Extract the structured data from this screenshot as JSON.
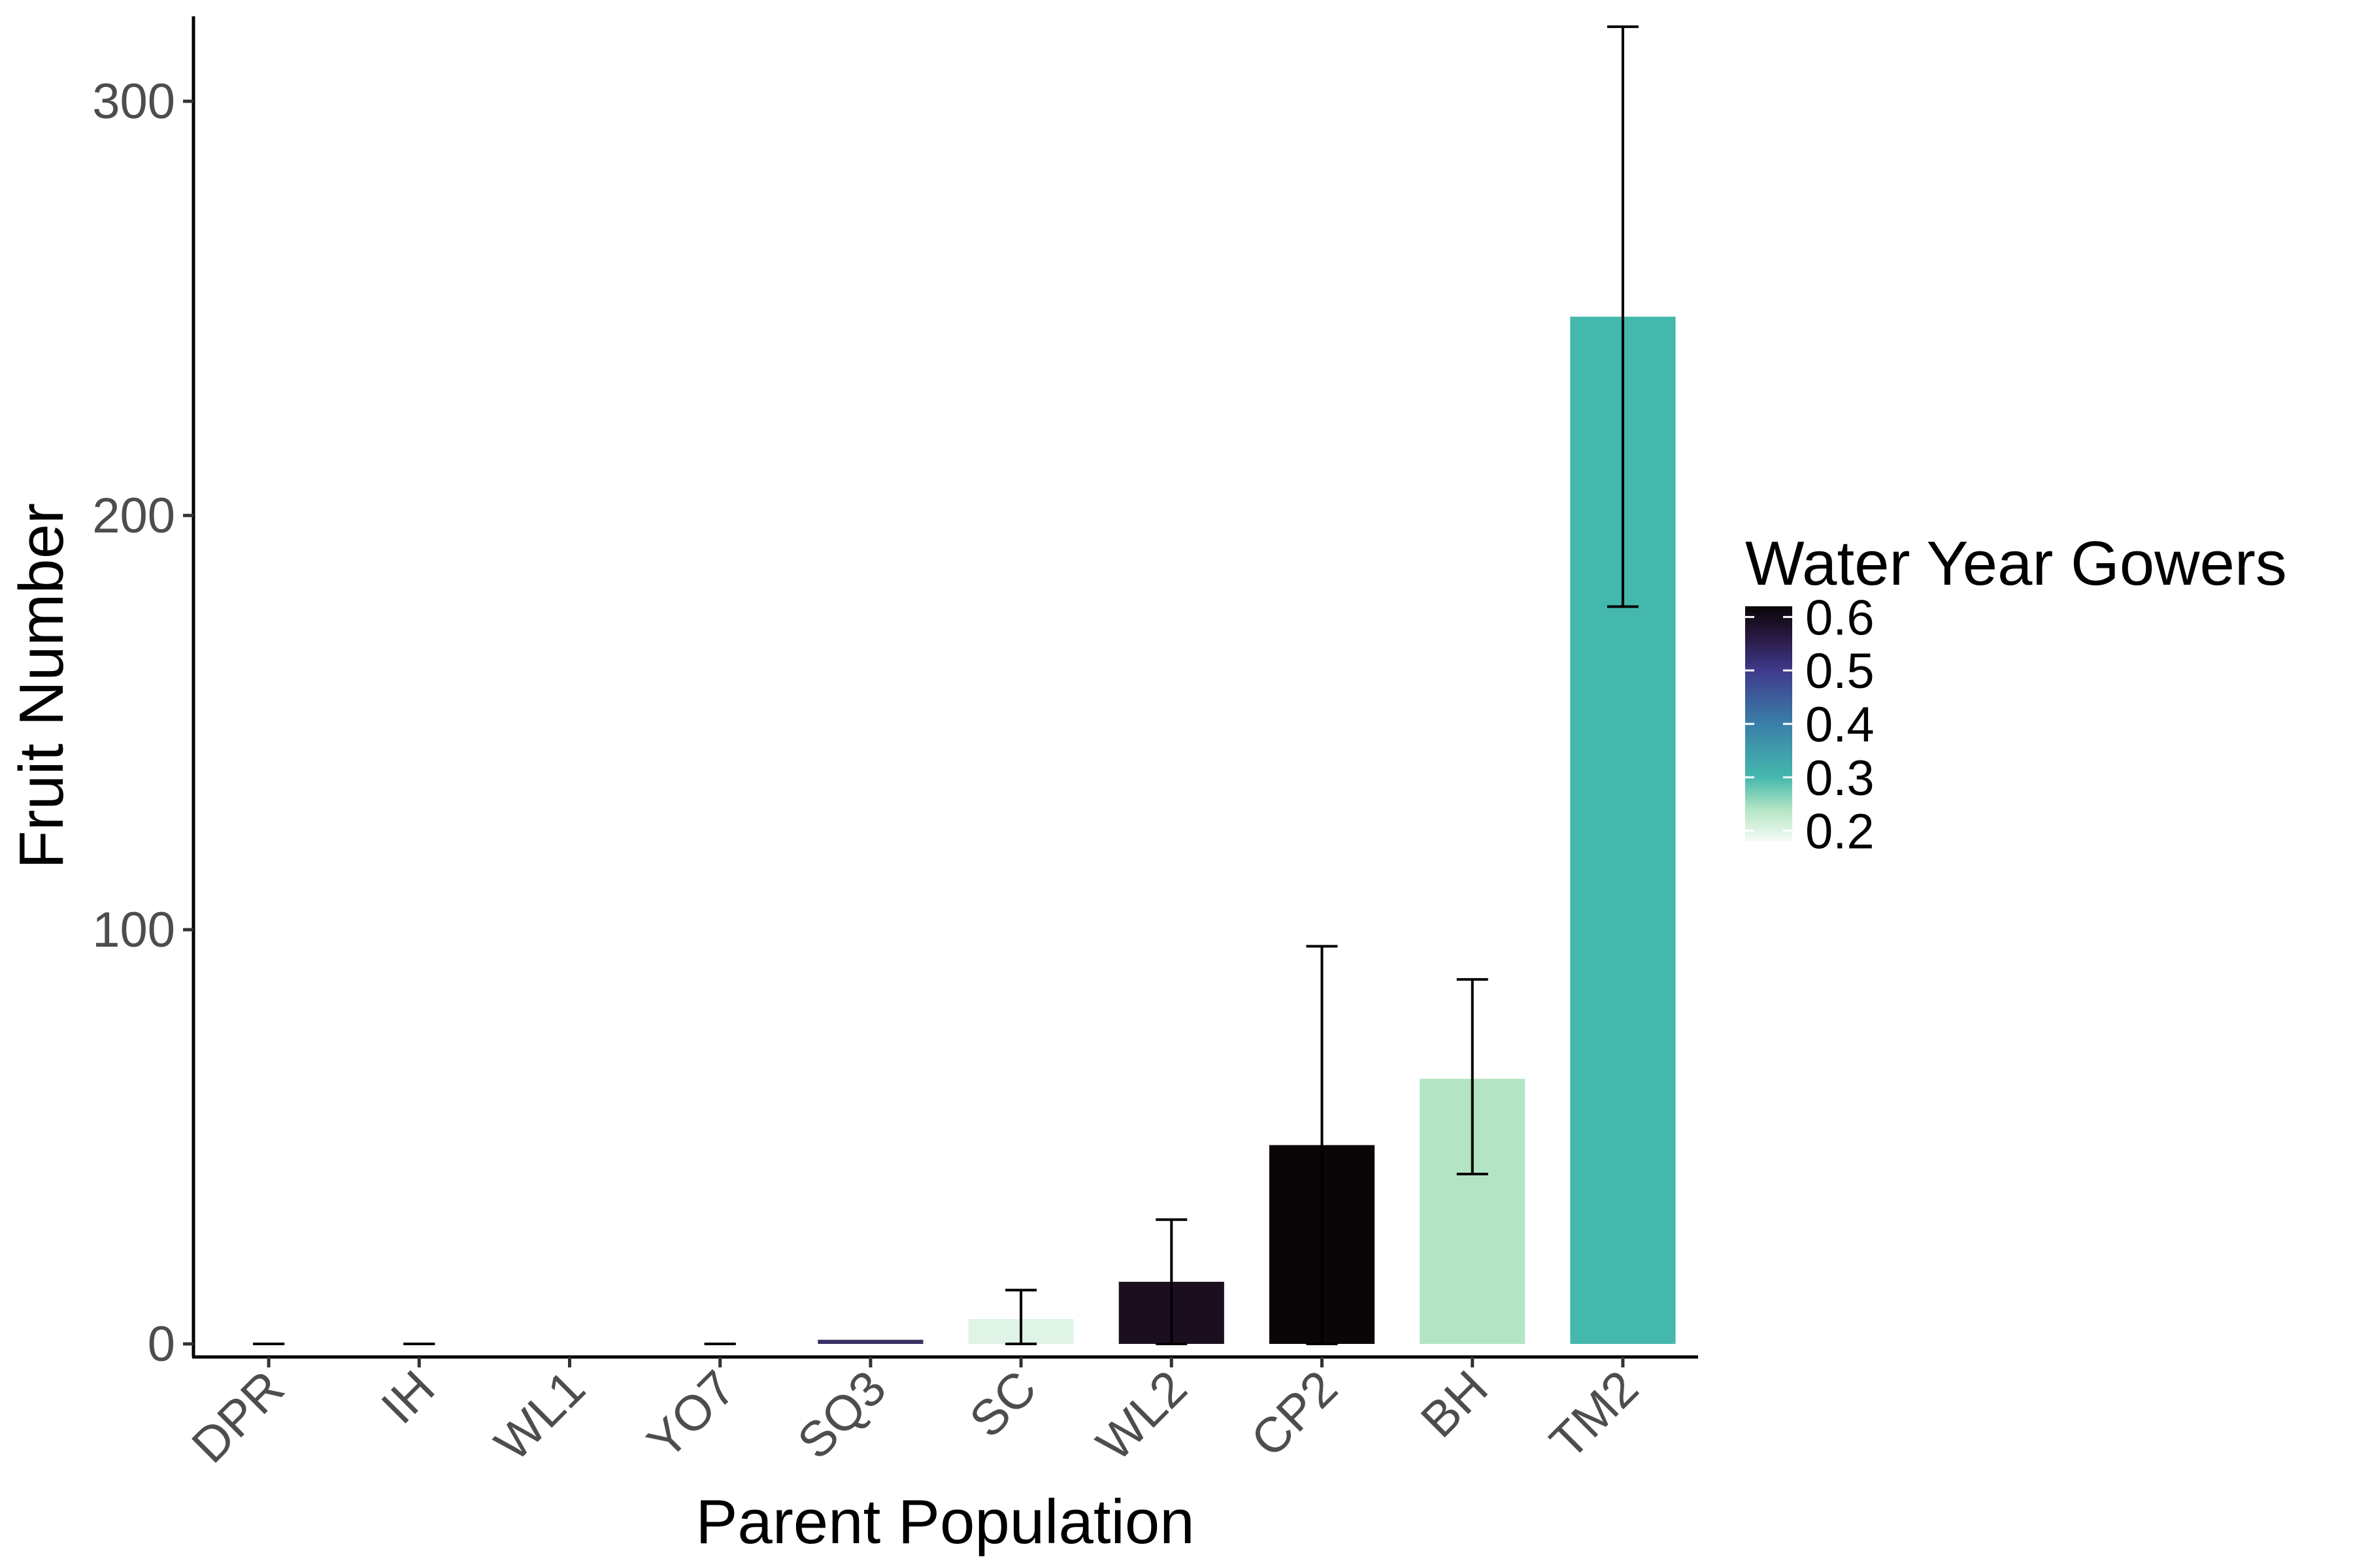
{
  "chart_data": {
    "type": "bar",
    "xlabel": "Parent Population",
    "ylabel": "Fruit Number",
    "categories": [
      "DPR",
      "IH",
      "WL1",
      "YO7",
      "SQ3",
      "SC",
      "WL2",
      "CP2",
      "BH",
      "TM2"
    ],
    "values": [
      0,
      0,
      0,
      0,
      1,
      6,
      15,
      48,
      64,
      248
    ],
    "error_low": [
      0,
      0,
      0,
      0,
      1,
      0,
      0,
      0,
      41,
      178
    ],
    "error_high": [
      0,
      0,
      0,
      0,
      1,
      13,
      30,
      96,
      88,
      318
    ],
    "has_error_bar": [
      true,
      true,
      false,
      true,
      false,
      true,
      true,
      true,
      true,
      true
    ],
    "color_values": [
      0.2,
      0.2,
      0.2,
      0.2,
      0.48,
      0.19,
      0.58,
      0.62,
      0.24,
      0.31
    ],
    "bar_colors": [
      "#ffffff",
      "#ffffff",
      "#ffffff",
      "#ffffff",
      "#3b2f63",
      "#dff3e6",
      "#1b0f1f",
      "#0a0506",
      "#b3e5c4",
      "#45b8ad"
    ],
    "ylim": [
      -3,
      322
    ],
    "yticks": [
      "0",
      "100",
      "200",
      "300"
    ],
    "ytick_values": [
      0,
      100,
      200,
      300
    ],
    "grid": false,
    "legend": {
      "title": "Water Year Gowers",
      "placement": "right",
      "labels": [
        "0.6",
        "0.5",
        "0.4",
        "0.3",
        "0.2"
      ],
      "label_values": [
        0.6,
        0.5,
        0.4,
        0.3,
        0.2
      ],
      "range": [
        0.18,
        0.62
      ],
      "gradient": [
        {
          "value": 0.18,
          "color": "#f4fbf6"
        },
        {
          "value": 0.24,
          "color": "#b3e5c4"
        },
        {
          "value": 0.3,
          "color": "#45b8ad"
        },
        {
          "value": 0.4,
          "color": "#3a7fa8"
        },
        {
          "value": 0.5,
          "color": "#3f3a8c"
        },
        {
          "value": 0.56,
          "color": "#2a1a45"
        },
        {
          "value": 0.62,
          "color": "#0a0506"
        }
      ]
    }
  }
}
